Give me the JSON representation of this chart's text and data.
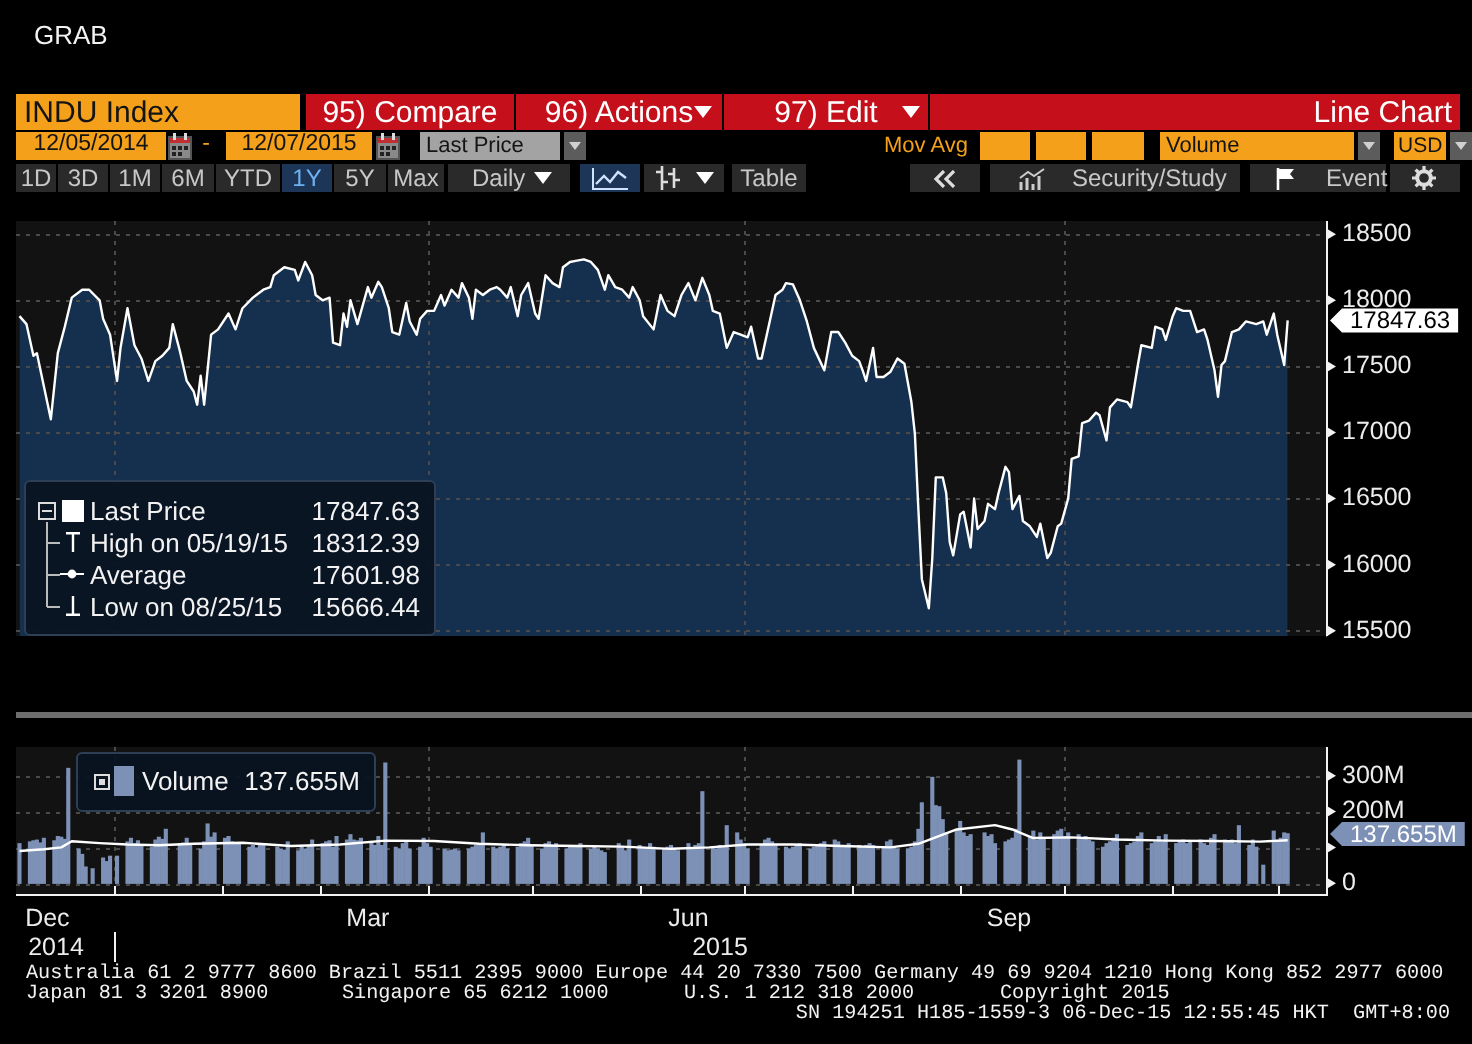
{
  "chart_data": [
    {
      "type": "other",
      "title": "GRAB",
      "annotations": [
        "INDU Index",
        "95) Compare",
        "96) Actions",
        "97) Edit",
        "Line Chart",
        "12/05/2014",
        "-",
        "12/07/2015",
        "Last Price",
        "Mov Avg",
        "Volume",
        "USD",
        "1D",
        "3D",
        "1M",
        "6M",
        "YTD",
        "1Y",
        "5Y",
        "Max",
        "Daily",
        "Table",
        "Security/Study",
        "Event"
      ]
    },
    {
      "type": "area",
      "series": [
        {
          "name": "Last Price",
          "color": "#ffffff",
          "x": [
            "2014-12-05",
            "2014-12-07",
            "2014-12-09",
            "2014-12-10",
            "2014-12-12",
            "2014-12-14",
            "2014-12-16",
            "2014-12-18",
            "2014-12-20",
            "2014-12-23",
            "2014-12-25",
            "2014-12-28",
            "2014-12-29",
            "2014-12-31",
            "2015-01-02",
            "2015-01-03",
            "2015-01-05",
            "2015-01-07",
            "2015-01-09",
            "2015-01-11",
            "2015-01-13",
            "2015-01-15",
            "2015-01-17",
            "2015-01-18",
            "2015-01-20",
            "2015-01-22",
            "2015-01-24",
            "2015-01-25",
            "2015-01-26",
            "2015-01-27",
            "2015-01-29",
            "2015-01-31",
            "2015-02-03",
            "2015-02-05",
            "2015-02-07",
            "2015-02-10",
            "2015-02-13",
            "2015-02-15",
            "2015-02-16",
            "2015-02-19",
            "2015-02-22",
            "2015-02-23",
            "2015-02-25",
            "2015-02-27",
            "2015-02-28",
            "2015-03-02",
            "2015-03-04",
            "2015-03-05",
            "2015-03-07",
            "2015-03-08",
            "2015-03-09",
            "2015-03-10",
            "2015-03-12",
            "2015-03-15",
            "2015-03-16",
            "2015-03-18",
            "2015-03-19",
            "2015-03-21",
            "2015-03-22",
            "2015-03-24",
            "2015-03-26",
            "2015-03-27",
            "2015-03-29",
            "2015-03-30",
            "2015-04-01",
            "2015-04-03",
            "2015-04-05",
            "2015-04-06",
            "2015-04-08",
            "2015-04-10",
            "2015-04-11",
            "2015-04-13",
            "2015-04-14",
            "2015-04-15",
            "2015-04-17",
            "2015-04-19",
            "2015-04-21",
            "2015-04-22",
            "2015-04-24",
            "2015-04-25",
            "2015-04-27",
            "2015-04-28",
            "2015-04-30",
            "2015-05-02",
            "2015-05-03",
            "2015-05-05",
            "2015-05-07",
            "2015-05-09",
            "2015-05-10",
            "2015-05-12",
            "2015-05-14",
            "2015-05-16",
            "2015-05-18",
            "2015-05-20",
            "2015-05-22",
            "2015-05-23",
            "2015-05-25",
            "2015-05-27",
            "2015-05-29",
            "2015-05-30",
            "2015-06-01",
            "2015-06-02",
            "2015-06-05",
            "2015-06-07",
            "2015-06-09",
            "2015-06-11",
            "2015-06-13",
            "2015-06-15",
            "2015-06-17",
            "2015-06-19",
            "2015-06-21",
            "2015-06-22",
            "2015-06-24",
            "2015-06-26",
            "2015-06-28",
            "2015-06-30",
            "2015-07-02",
            "2015-07-03",
            "2015-07-05",
            "2015-07-06",
            "2015-07-08",
            "2015-07-10",
            "2015-07-12",
            "2015-07-13",
            "2015-07-15",
            "2015-07-17",
            "2015-07-19",
            "2015-07-21",
            "2015-07-24",
            "2015-07-26",
            "2015-07-28",
            "2015-07-30",
            "2015-08-01",
            "2015-08-03",
            "2015-08-04",
            "2015-08-05",
            "2015-08-07",
            "2015-08-08",
            "2015-08-10",
            "2015-08-12",
            "2015-08-14",
            "2015-08-16",
            "2015-08-18",
            "2015-08-19",
            "2015-08-20",
            "2015-08-21",
            "2015-08-23",
            "2015-08-24",
            "2015-08-25",
            "2015-08-27",
            "2015-08-28",
            "2015-08-29",
            "2015-08-30",
            "2015-09-01",
            "2015-09-02",
            "2015-09-04",
            "2015-09-05",
            "2015-09-06",
            "2015-09-08",
            "2015-09-09",
            "2015-09-11",
            "2015-09-12",
            "2015-09-14",
            "2015-09-15",
            "2015-09-16",
            "2015-09-18",
            "2015-09-19",
            "2015-09-21",
            "2015-09-23",
            "2015-09-24",
            "2015-09-26",
            "2015-09-27",
            "2015-09-29",
            "2015-09-30",
            "2015-10-02",
            "2015-10-03",
            "2015-10-05",
            "2015-10-06",
            "2015-10-08",
            "2015-10-10",
            "2015-10-11",
            "2015-10-13",
            "2015-10-14",
            "2015-10-16",
            "2015-10-19",
            "2015-10-20",
            "2015-10-22",
            "2015-10-23",
            "2015-10-26",
            "2015-10-27",
            "2015-10-29",
            "2015-10-30",
            "2015-11-01",
            "2015-11-02",
            "2015-11-04",
            "2015-11-06",
            "2015-11-08",
            "2015-11-10",
            "2015-11-11",
            "2015-11-13",
            "2015-11-14",
            "2015-11-15",
            "2015-11-16",
            "2015-11-18",
            "2015-11-20",
            "2015-11-22",
            "2015-11-25",
            "2015-11-27",
            "2015-11-28",
            "2015-11-30",
            "2015-12-01",
            "2015-12-03",
            "2015-12-04"
          ],
          "values": [
            17880,
            17820,
            17580,
            17600,
            17350,
            17100,
            17600,
            17800,
            18020,
            18080,
            18080,
            18000,
            17860,
            17740,
            17390,
            17640,
            17940,
            17660,
            17560,
            17390,
            17540,
            17580,
            17640,
            17820,
            17620,
            17390,
            17310,
            17210,
            17430,
            17210,
            17740,
            17780,
            17900,
            17780,
            17940,
            18020,
            18080,
            18100,
            18190,
            18250,
            18230,
            18150,
            18290,
            18190,
            18040,
            18000,
            18020,
            17680,
            17660,
            17900,
            17800,
            18000,
            17820,
            18100,
            18020,
            18140,
            18100,
            17940,
            17760,
            17740,
            17980,
            17840,
            17740,
            17860,
            17920,
            17920,
            18040,
            17960,
            18080,
            18020,
            18130,
            18020,
            17860,
            18080,
            18040,
            18080,
            18100,
            18080,
            18020,
            18100,
            17880,
            18040,
            18130,
            17900,
            17860,
            18190,
            18130,
            18100,
            18250,
            18290,
            18300,
            18310,
            18290,
            18230,
            18080,
            18190,
            18100,
            18080,
            18020,
            18100,
            18000,
            17880,
            17780,
            18040,
            17920,
            17880,
            18040,
            18130,
            18000,
            18170,
            18040,
            17920,
            17900,
            17640,
            17760,
            17740,
            17720,
            17800,
            17560,
            17560,
            17800,
            18040,
            18080,
            18130,
            18120,
            18000,
            17840,
            17640,
            17470,
            17760,
            17760,
            17680,
            17580,
            17540,
            17470,
            17390,
            17640,
            17420,
            17420,
            17460,
            17560,
            17520,
            17230,
            16990,
            16420,
            15890,
            15670,
            16050,
            16660,
            16660,
            16540,
            16170,
            16070,
            16380,
            16400,
            16130,
            16500,
            16270,
            16330,
            16460,
            16420,
            16540,
            16740,
            16700,
            16420,
            16520,
            16330,
            16290,
            16210,
            16310,
            16050,
            16090,
            16290,
            16310,
            16500,
            16800,
            16820,
            17070,
            17090,
            17150,
            17130,
            16940,
            17190,
            17250,
            17230,
            17190,
            17510,
            17660,
            17640,
            17800,
            17780,
            17700,
            17880,
            17940,
            17920,
            17920,
            17760,
            17780,
            17700,
            17470,
            17270,
            17510,
            17540,
            17760,
            17780,
            17840,
            17820,
            17840,
            17740,
            17900,
            17740,
            17510,
            17847.63
          ]
        }
      ],
      "xlim": [
        "2014-12-04",
        "2015-12-15"
      ],
      "ylim": [
        15460,
        18600
      ],
      "yticks": [
        15500,
        16000,
        16500,
        17000,
        17500,
        18000,
        18500
      ],
      "grid": "y",
      "tick_labels": "y",
      "legend": "bottom left",
      "ref_lines": [
        {
          "axis": "x",
          "value": "2015-01-01",
          "color": "#4a4a4a",
          "line_style": "dashed"
        },
        {
          "axis": "x",
          "value": "2015-04-01",
          "color": "#4a4a4a",
          "line_style": "dashed"
        },
        {
          "axis": "x",
          "value": "2015-07-01",
          "color": "#4a4a4a",
          "line_style": "dashed"
        },
        {
          "axis": "x",
          "value": "2015-10-01",
          "color": "#4a4a4a",
          "line_style": "dashed"
        }
      ],
      "annotations": [
        "17847.63",
        "High on 05/19/15 18312.39",
        "Average 17601.98",
        "Low on 08/25/15 15666.44"
      ]
    },
    {
      "type": "bar",
      "series": [
        {
          "name": "Volume",
          "color": "#7d91b6",
          "x": [
            "2014-12-05",
            "2014-12-08",
            "2014-12-09",
            "2014-12-10",
            "2014-12-11",
            "2014-12-12",
            "2014-12-15",
            "2014-12-16",
            "2014-12-17",
            "2014-12-18",
            "2014-12-19",
            "2014-12-22",
            "2014-12-23",
            "2014-12-24",
            "2014-12-26",
            "2014-12-29",
            "2014-12-30",
            "2014-12-31",
            "2015-01-02",
            "2015-01-05",
            "2015-01-06",
            "2015-01-07",
            "2015-01-08",
            "2015-01-09",
            "2015-01-12",
            "2015-01-13",
            "2015-01-14",
            "2015-01-15",
            "2015-01-16",
            "2015-01-20",
            "2015-01-21",
            "2015-01-22",
            "2015-01-23",
            "2015-01-26",
            "2015-01-27",
            "2015-01-28",
            "2015-01-29",
            "2015-01-30",
            "2015-02-02",
            "2015-02-03",
            "2015-02-04",
            "2015-02-05",
            "2015-02-06",
            "2015-02-09",
            "2015-02-10",
            "2015-02-11",
            "2015-02-12",
            "2015-02-13",
            "2015-02-17",
            "2015-02-18",
            "2015-02-19",
            "2015-02-20",
            "2015-02-23",
            "2015-02-24",
            "2015-02-25",
            "2015-02-26",
            "2015-02-27",
            "2015-03-02",
            "2015-03-03",
            "2015-03-04",
            "2015-03-05",
            "2015-03-06",
            "2015-03-09",
            "2015-03-10",
            "2015-03-11",
            "2015-03-12",
            "2015-03-13",
            "2015-03-16",
            "2015-03-17",
            "2015-03-18",
            "2015-03-19",
            "2015-03-20",
            "2015-03-23",
            "2015-03-24",
            "2015-03-25",
            "2015-03-26",
            "2015-03-27",
            "2015-03-30",
            "2015-03-31",
            "2015-04-01",
            "2015-04-02",
            "2015-04-06",
            "2015-04-07",
            "2015-04-08",
            "2015-04-09",
            "2015-04-10",
            "2015-04-13",
            "2015-04-14",
            "2015-04-15",
            "2015-04-16",
            "2015-04-17",
            "2015-04-20",
            "2015-04-21",
            "2015-04-22",
            "2015-04-23",
            "2015-04-24",
            "2015-04-27",
            "2015-04-28",
            "2015-04-29",
            "2015-04-30",
            "2015-05-01",
            "2015-05-04",
            "2015-05-05",
            "2015-05-06",
            "2015-05-07",
            "2015-05-08",
            "2015-05-11",
            "2015-05-12",
            "2015-05-13",
            "2015-05-14",
            "2015-05-15",
            "2015-05-18",
            "2015-05-19",
            "2015-05-20",
            "2015-05-21",
            "2015-05-22",
            "2015-05-26",
            "2015-05-27",
            "2015-05-28",
            "2015-05-29",
            "2015-06-01",
            "2015-06-02",
            "2015-06-03",
            "2015-06-04",
            "2015-06-05",
            "2015-06-08",
            "2015-06-09",
            "2015-06-10",
            "2015-06-11",
            "2015-06-12",
            "2015-06-15",
            "2015-06-16",
            "2015-06-17",
            "2015-06-18",
            "2015-06-19",
            "2015-06-22",
            "2015-06-23",
            "2015-06-24",
            "2015-06-25",
            "2015-06-26",
            "2015-06-29",
            "2015-06-30",
            "2015-07-01",
            "2015-07-02",
            "2015-07-06",
            "2015-07-07",
            "2015-07-08",
            "2015-07-09",
            "2015-07-10",
            "2015-07-13",
            "2015-07-14",
            "2015-07-15",
            "2015-07-16",
            "2015-07-17",
            "2015-07-20",
            "2015-07-21",
            "2015-07-22",
            "2015-07-23",
            "2015-07-24",
            "2015-07-27",
            "2015-07-28",
            "2015-07-29",
            "2015-07-30",
            "2015-07-31",
            "2015-08-03",
            "2015-08-04",
            "2015-08-05",
            "2015-08-06",
            "2015-08-07",
            "2015-08-10",
            "2015-08-11",
            "2015-08-12",
            "2015-08-13",
            "2015-08-14",
            "2015-08-17",
            "2015-08-18",
            "2015-08-19",
            "2015-08-20",
            "2015-08-21",
            "2015-08-24",
            "2015-08-25",
            "2015-08-26",
            "2015-08-27",
            "2015-08-28",
            "2015-08-31",
            "2015-09-01",
            "2015-09-02",
            "2015-09-03",
            "2015-09-04",
            "2015-09-08",
            "2015-09-09",
            "2015-09-10",
            "2015-09-11",
            "2015-09-14",
            "2015-09-15",
            "2015-09-16",
            "2015-09-17",
            "2015-09-18",
            "2015-09-21",
            "2015-09-22",
            "2015-09-23",
            "2015-09-24",
            "2015-09-25",
            "2015-09-28",
            "2015-09-29",
            "2015-09-30",
            "2015-10-01",
            "2015-10-02",
            "2015-10-05",
            "2015-10-06",
            "2015-10-07",
            "2015-10-08",
            "2015-10-09",
            "2015-10-12",
            "2015-10-13",
            "2015-10-14",
            "2015-10-15",
            "2015-10-16",
            "2015-10-19",
            "2015-10-20",
            "2015-10-21",
            "2015-10-22",
            "2015-10-23",
            "2015-10-26",
            "2015-10-27",
            "2015-10-28",
            "2015-10-29",
            "2015-10-30",
            "2015-11-02",
            "2015-11-03",
            "2015-11-04",
            "2015-11-05",
            "2015-11-06",
            "2015-11-09",
            "2015-11-10",
            "2015-11-11",
            "2015-11-12",
            "2015-11-13",
            "2015-11-16",
            "2015-11-17",
            "2015-11-18",
            "2015-11-19",
            "2015-11-20",
            "2015-11-23",
            "2015-11-24",
            "2015-11-25",
            "2015-11-27",
            "2015-11-30",
            "2015-12-01",
            "2015-12-02",
            "2015-12-03",
            "2015-12-04"
          ],
          "values": [
            110,
            115,
            118,
            120,
            112,
            125,
            118,
            130,
            128,
            122,
            320,
            95,
            80,
            45,
            40,
            70,
            60,
            75,
            75,
            115,
            125,
            110,
            118,
            105,
            100,
            120,
            128,
            122,
            150,
            110,
            112,
            125,
            105,
            95,
            115,
            165,
            128,
            140,
            125,
            130,
            115,
            110,
            112,
            100,
            105,
            98,
            110,
            105,
            100,
            95,
            92,
            115,
            90,
            100,
            95,
            105,
            120,
            110,
            115,
            118,
            100,
            130,
            120,
            135,
            120,
            118,
            125,
            115,
            105,
            130,
            105,
            335,
            100,
            95,
            110,
            115,
            95,
            100,
            125,
            110,
            100,
            95,
            90,
            92,
            95,
            90,
            95,
            100,
            105,
            110,
            140,
            100,
            95,
            100,
            105,
            95,
            100,
            110,
            115,
            125,
            105,
            95,
            110,
            115,
            105,
            110,
            95,
            105,
            100,
            105,
            110,
            95,
            100,
            95,
            90,
            85,
            110,
            100,
            90,
            120,
            105,
            100,
            98,
            110,
            100,
            95,
            100,
            105,
            95,
            90,
            110,
            95,
            105,
            110,
            255,
            100,
            95,
            105,
            100,
            160,
            140,
            120,
            110,
            95,
            105,
            120,
            125,
            115,
            105,
            100,
            95,
            100,
            105,
            110,
            95,
            100,
            105,
            110,
            115,
            120,
            115,
            105,
            100,
            110,
            105,
            100,
            105,
            110,
            105,
            100,
            115,
            120,
            100,
            95,
            95,
            100,
            115,
            150,
            224,
            295,
            216,
            213,
            177,
            140,
            150,
            172,
            140,
            130,
            135,
            140,
            130,
            135,
            110,
            115,
            120,
            125,
            150,
            343,
            130,
            145,
            120,
            140,
            125,
            135,
            145,
            150,
            130,
            140,
            135,
            125,
            130,
            120,
            115,
            100,
            110,
            115,
            125,
            135,
            105,
            110,
            115,
            130,
            140,
            110,
            115,
            130,
            115,
            135,
            110,
            115,
            120,
            110,
            115,
            120,
            110,
            105,
            125,
            135,
            120,
            115,
            120,
            110,
            160,
            105,
            120,
            100,
            50,
            145,
            120,
            125,
            140,
            137.655
          ]
        },
        {
          "type": "line",
          "color": "#ffffff",
          "x": [
            "2014-12-05",
            "2014-12-12",
            "2014-12-17",
            "2014-12-20",
            "2014-12-28",
            "2015-01-05",
            "2015-01-14",
            "2015-01-24",
            "2015-02-07",
            "2015-02-21",
            "2015-03-07",
            "2015-03-20",
            "2015-04-03",
            "2015-04-16",
            "2015-04-30",
            "2015-05-14",
            "2015-05-27",
            "2015-06-10",
            "2015-06-21",
            "2015-07-02",
            "2015-07-15",
            "2015-07-29",
            "2015-08-12",
            "2015-08-20",
            "2015-08-31",
            "2015-09-11",
            "2015-09-16",
            "2015-09-22",
            "2015-10-03",
            "2015-10-16",
            "2015-10-30",
            "2015-11-13",
            "2015-11-26",
            "2015-12-04"
          ],
          "values": [
            90,
            95,
            100,
            117,
            112,
            108,
            106,
            110,
            113,
            104,
            108,
            119,
            118,
            110,
            106,
            104,
            102,
            96,
            100,
            108,
            108,
            104,
            100,
            110,
            150,
            162,
            150,
            126,
            128,
            122,
            119,
            118,
            116,
            120
          ]
        }
      ],
      "xlim": [
        "2014-12-04",
        "2015-12-15"
      ],
      "xticks": [
        {
          "value": "2014-12-13",
          "label": "Dec"
        },
        {
          "value": "2015-01-01",
          "label": null
        },
        {
          "value": "2015-02-01",
          "label": null
        },
        {
          "value": "2015-03-01",
          "label": null
        },
        {
          "value": "2015-03-15",
          "label": "Mar"
        },
        {
          "value": "2015-04-01",
          "label": null
        },
        {
          "value": "2015-05-01",
          "label": null
        },
        {
          "value": "2015-06-01",
          "label": null
        },
        {
          "value": "2015-06-15",
          "label": "Jun"
        },
        {
          "value": "2015-07-01",
          "label": null
        },
        {
          "value": "2015-08-01",
          "label": null
        },
        {
          "value": "2015-09-01",
          "label": null
        },
        {
          "value": "2015-09-15",
          "label": "Sep"
        },
        {
          "value": "2015-10-01",
          "label": null
        },
        {
          "value": "2015-11-01",
          "label": null
        },
        {
          "value": "2015-12-01",
          "label": null
        }
      ],
      "ylim": [
        -30,
        380
      ],
      "yticks": [
        0,
        {
          "value": 100,
          "label": null
        },
        {
          "value": 200,
          "label": "200M"
        },
        {
          "value": 300,
          "label": "300M"
        }
      ],
      "grid": "y",
      "legend": "top left",
      "ref_lines": [
        {
          "axis": "x",
          "value": "2015-01-01",
          "color": "#4a4a4a",
          "line_style": "dashed"
        },
        {
          "axis": "x",
          "value": "2015-04-01",
          "color": "#4a4a4a",
          "line_style": "dashed"
        },
        {
          "axis": "x",
          "value": "2015-07-01",
          "color": "#4a4a4a",
          "line_style": "dashed"
        },
        {
          "axis": "x",
          "value": "2015-10-01",
          "color": "#4a4a4a",
          "line_style": "dashed"
        }
      ],
      "annotations": [
        "137.655M",
        "2014",
        "2015"
      ]
    },
    {
      "type": "other",
      "annotations": [
        "Australia 61 2 9777 8600 Brazil 5511 2395 9000 Europe 44 20 7330 7500 Germany 49 69 9204 1210 Hong Kong 852 2977 6000",
        "Japan 81 3 3201 8900",
        "Singapore 65 6212 1000",
        "U.S. 1 212 318 2000",
        "Copyright 2015",
        "SN 194251 H185-1559-3 06-Dec-15 12:55:45 HKT  GMT+8:00"
      ]
    }
  ]
}
